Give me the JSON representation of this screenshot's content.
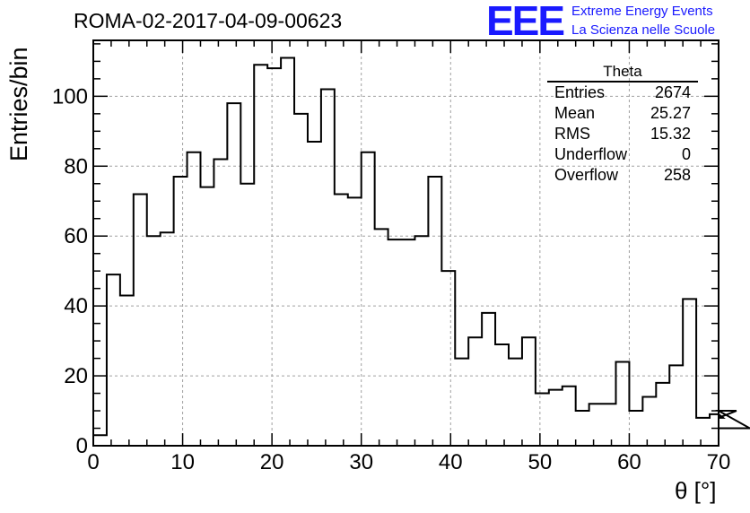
{
  "header": {
    "title": "ROMA-02-2017-04-09-00623",
    "logo_text": "EEE",
    "logo_line1": "Extreme Energy Events",
    "logo_line2": "La Scienza nelle Scuole"
  },
  "stats_box": {
    "title": "Theta",
    "rows": [
      {
        "label": "Entries",
        "value": "2674"
      },
      {
        "label": "Mean",
        "value": "25.27"
      },
      {
        "label": "RMS",
        "value": "15.32"
      },
      {
        "label": "Underflow",
        "value": "0"
      },
      {
        "label": "Overflow",
        "value": "258"
      }
    ]
  },
  "colors": {
    "line": "#000000",
    "grid": "#a0a0a0",
    "logo": "#1a1aff"
  },
  "chart_data": {
    "type": "bar",
    "style": "step-histogram",
    "xlabel": "θ [°]",
    "ylabel": "Entries/bin",
    "xlim": [
      0,
      70
    ],
    "ylim": [
      0,
      116
    ],
    "x_ticks": [
      0,
      10,
      20,
      30,
      40,
      50,
      60,
      70
    ],
    "y_ticks": [
      0,
      20,
      40,
      60,
      80,
      100
    ],
    "grid": true,
    "bin_width": 1.5,
    "values": [
      3,
      49,
      43,
      72,
      60,
      61,
      77,
      84,
      74,
      82,
      98,
      75,
      109,
      108,
      111,
      95,
      87,
      102,
      72,
      71,
      84,
      62,
      59,
      59,
      60,
      77,
      50,
      25,
      31,
      38,
      29,
      25,
      31,
      15,
      16,
      17,
      10,
      12,
      12,
      24,
      10,
      14,
      18,
      23,
      42,
      8,
      9,
      8,
      10,
      5
    ]
  }
}
